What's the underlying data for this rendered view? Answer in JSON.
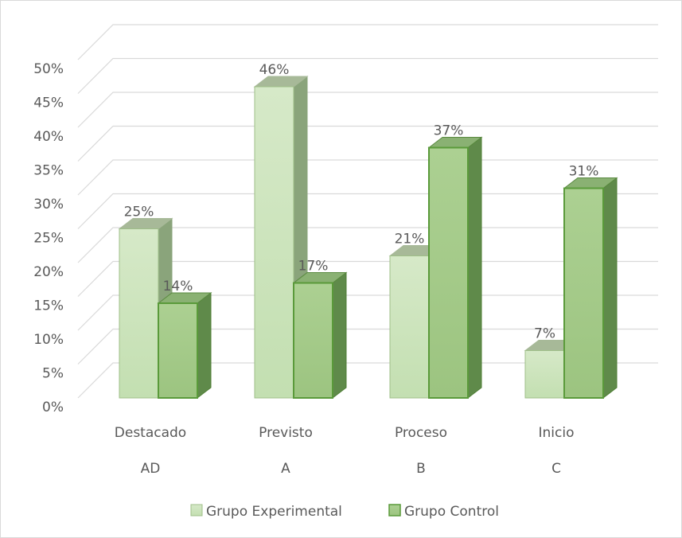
{
  "chart_data": {
    "type": "bar",
    "title": "",
    "xlabel": "",
    "ylabel": "",
    "ylim": [
      0,
      50
    ],
    "y_ticks": [
      "0%",
      "5%",
      "10%",
      "15%",
      "20%",
      "25%",
      "30%",
      "35%",
      "40%",
      "45%",
      "50%"
    ],
    "categories": [
      {
        "line1": "Destacado",
        "line2": "AD"
      },
      {
        "line1": "Previsto",
        "line2": "A"
      },
      {
        "line1": "Proceso",
        "line2": "B"
      },
      {
        "line1": "Inicio",
        "line2": "C"
      }
    ],
    "series": [
      {
        "name": "Grupo Experimental",
        "values": [
          25,
          46,
          21,
          7
        ],
        "labels": [
          "25%",
          "46%",
          "21%",
          "7%"
        ],
        "color": "#c5e0b4"
      },
      {
        "name": "Grupo Control",
        "values": [
          14,
          17,
          37,
          31
        ],
        "labels": [
          "14%",
          "17%",
          "37%",
          "31%"
        ],
        "color": "#a9d18e"
      }
    ],
    "grid": true,
    "three_d": true,
    "legend_position": "bottom"
  }
}
